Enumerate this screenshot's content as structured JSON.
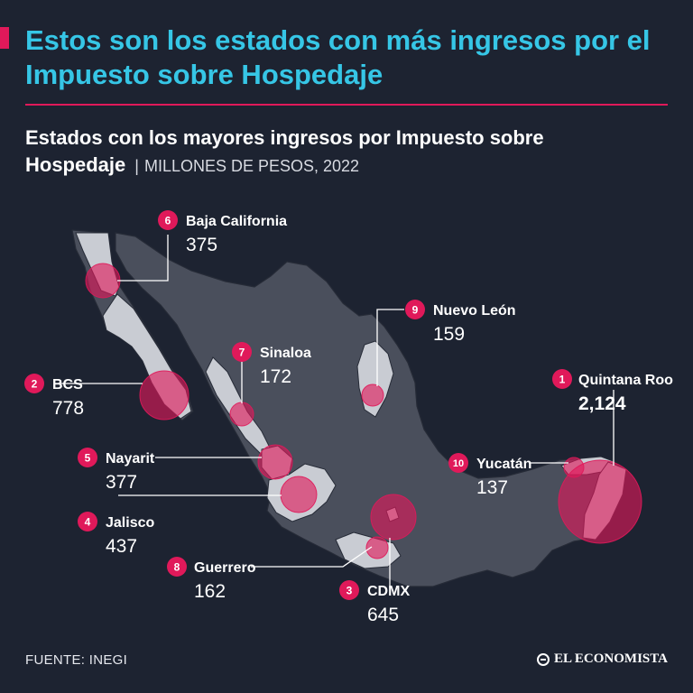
{
  "headline": "Estos son los estados con más ingresos por el Impuesto sobre Hospedaje",
  "subtitle": {
    "title": "Estados con los mayores ingresos por Impuesto sobre Hospedaje",
    "separator": "|",
    "unit": "MILLONES DE PESOS, 2022"
  },
  "colors": {
    "headline": "#36c6e6",
    "accent": "#e0195a",
    "background": "#1d2331",
    "map_fill": "#4a4f5c",
    "highlight_fill": "#c9ccd3",
    "bubble": "#e0195a"
  },
  "map_data": {
    "region": "México",
    "metric": "Ingresos por Impuesto sobre Hospedaje",
    "states": [
      {
        "rank": "1",
        "name": "Quintana Roo",
        "value": "2,124"
      },
      {
        "rank": "2",
        "name": "BCS",
        "value": "778"
      },
      {
        "rank": "3",
        "name": "CDMX",
        "value": "645"
      },
      {
        "rank": "4",
        "name": "Jalisco",
        "value": "437"
      },
      {
        "rank": "5",
        "name": "Nayarit",
        "value": "377"
      },
      {
        "rank": "6",
        "name": "Baja California",
        "value": "375"
      },
      {
        "rank": "7",
        "name": "Sinaloa",
        "value": "172"
      },
      {
        "rank": "8",
        "name": "Guerrero",
        "value": "162"
      },
      {
        "rank": "9",
        "name": "Nuevo León",
        "value": "159"
      },
      {
        "rank": "10",
        "name": "Yucatán",
        "value": "137"
      }
    ]
  },
  "footer": {
    "source": "FUENTE: INEGI",
    "brand": "EL ECONOMISTA"
  }
}
